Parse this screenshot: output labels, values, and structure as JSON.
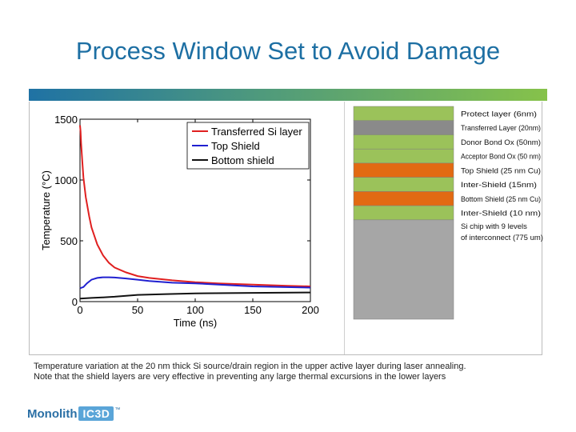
{
  "slide": {
    "title": "Process Window Set to Avoid Damage",
    "caption_line1": "Temperature variation at the 20 nm thick Si source/drain region in the upper active layer during laser annealing.",
    "caption_line2": "Note that the shield layers are very effective in preventing any large thermal excursions in the lower layers"
  },
  "logo": {
    "word": "Monolith",
    "box": "IC3D",
    "tm": "™"
  },
  "chart_data": {
    "type": "line",
    "title": "",
    "xlabel": "Time (ns)",
    "ylabel": "Temperature (°C)",
    "xlim": [
      0,
      200
    ],
    "ylim": [
      0,
      1500
    ],
    "xticks": [
      0,
      50,
      100,
      150,
      200
    ],
    "yticks": [
      0,
      500,
      1000,
      1500
    ],
    "legend_position": "top-right",
    "grid": false,
    "series": [
      {
        "name": "Transferred Si layer",
        "color": "#e02020",
        "x": [
          0,
          0.5,
          1,
          2,
          3,
          5,
          8,
          10,
          15,
          20,
          25,
          30,
          40,
          50,
          60,
          80,
          100,
          120,
          150,
          180,
          200
        ],
        "y": [
          1450,
          1400,
          1300,
          1150,
          1020,
          860,
          700,
          610,
          470,
          380,
          320,
          280,
          240,
          210,
          195,
          175,
          160,
          150,
          140,
          130,
          125
        ]
      },
      {
        "name": "Top Shield",
        "color": "#2020d0",
        "x": [
          0,
          3,
          6,
          10,
          15,
          20,
          25,
          30,
          40,
          50,
          60,
          80,
          100,
          150,
          200
        ],
        "y": [
          110,
          120,
          150,
          180,
          195,
          200,
          200,
          198,
          190,
          180,
          170,
          155,
          150,
          125,
          115
        ]
      },
      {
        "name": "Bottom shield",
        "color": "#111111",
        "x": [
          0,
          10,
          20,
          30,
          50,
          75,
          100,
          150,
          200
        ],
        "y": [
          25,
          30,
          35,
          40,
          55,
          62,
          68,
          72,
          75
        ]
      }
    ]
  },
  "stack": {
    "layers": [
      {
        "label": "Protect layer (6nm)",
        "color": "#9bc25a",
        "rel": 1.0
      },
      {
        "label": "Transferred Layer (20nm)",
        "color": "#8a8a8a",
        "rel": 1.0
      },
      {
        "label": "Donor Bond Ox (50nm)",
        "color": "#9bc25a",
        "rel": 1.0
      },
      {
        "label": "Acceptor Bond Ox (50 nm)",
        "color": "#9bc25a",
        "rel": 1.0
      },
      {
        "label": "Top Shield (25 nm Cu)",
        "color": "#e26a12",
        "rel": 1.0
      },
      {
        "label": "Inter-Shield (15nm)",
        "color": "#9bc25a",
        "rel": 1.0
      },
      {
        "label": "Bottom Shield (25 nm Cu)",
        "color": "#e26a12",
        "rel": 1.0
      },
      {
        "label": "Inter-Shield (10 nm)",
        "color": "#9bc25a",
        "rel": 1.0
      },
      {
        "label": "Si chip with 9 levels of interconnect (775 um)",
        "color": "#a6a6a6",
        "rel": 7.0
      }
    ]
  }
}
